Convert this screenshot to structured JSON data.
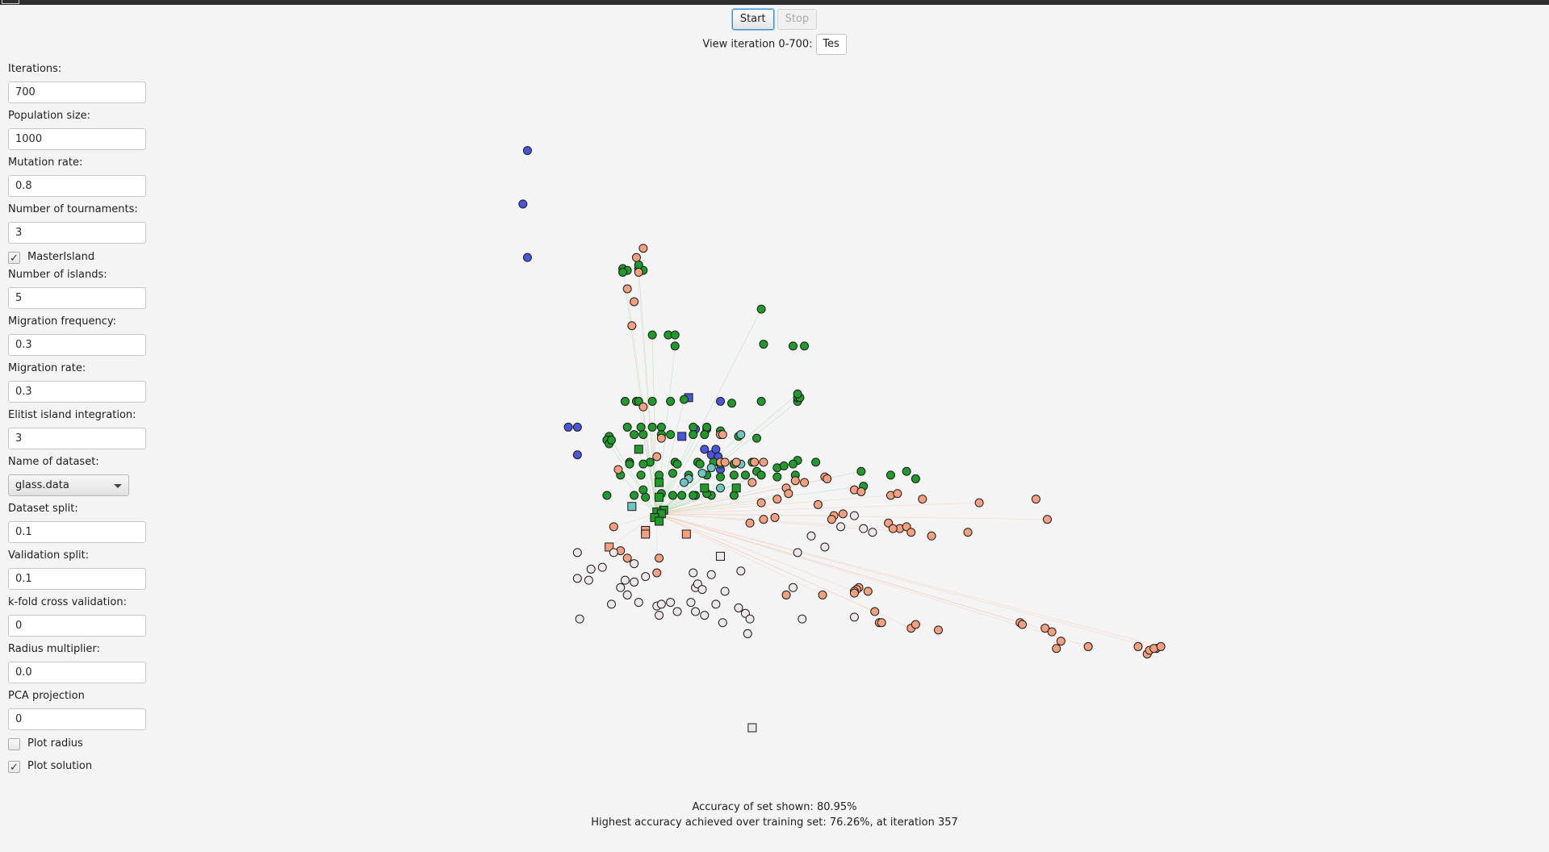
{
  "toolbar": {
    "start_label": "Start",
    "stop_label": "Stop"
  },
  "iteration": {
    "label": "View iteration 0-700:",
    "value": "Tes"
  },
  "settings": {
    "iterations_label": "Iterations:",
    "iterations_value": "700",
    "population_label": "Population size:",
    "population_value": "1000",
    "mutation_label": "Mutation rate:",
    "mutation_value": "0.8",
    "tournaments_label": "Number of tournaments:",
    "tournaments_value": "3",
    "master_island_label": "MasterIsland",
    "master_island_checked": true,
    "islands_label": "Number of islands:",
    "islands_value": "5",
    "migration_freq_label": "Migration frequency:",
    "migration_freq_value": "0.3",
    "migration_rate_label": "Migration rate:",
    "migration_rate_value": "0.3",
    "elitist_label": "Elitist island integration:",
    "elitist_value": "3",
    "dataset_label": "Name of dataset:",
    "dataset_value": "glass.data",
    "split_label": "Dataset split:",
    "split_value": "0.1",
    "validation_label": "Validation split:",
    "validation_value": "0.1",
    "kfold_label": "k-fold cross validation:",
    "kfold_value": "0",
    "radius_label": "Radius multiplier:",
    "radius_value": "0.0",
    "pca_label": "PCA projection",
    "pca_value": "0",
    "plot_radius_label": "Plot radius",
    "plot_radius_checked": false,
    "plot_solution_label": "Plot solution",
    "plot_solution_checked": true
  },
  "status": {
    "accuracy_text": "Accuracy of set shown: 80.95%",
    "highest_text": "Highest accuracy achieved over training set: 76.26%, at iteration 357"
  },
  "colors": {
    "blue": "#4a55dd",
    "green": "#1f9a2b",
    "salmon": "#f4a07f",
    "light": "#efe6ea",
    "teal": "#6fc6c0",
    "green_line": "#7fcf8a",
    "salmon_line": "#f2b8a0"
  },
  "chart_data": {
    "type": "scatter",
    "title": "",
    "xlabel": "",
    "ylabel": "",
    "grid": false,
    "legend": "none",
    "series": [
      {
        "color": "blue",
        "marker": "circle",
        "x": [
          -6.1,
          -6.3,
          -6.1,
          -4.3,
          -3.9,
          -3.9,
          2.4,
          1.3,
          1.8,
          1.7,
          2.0,
          2.2,
          2.3,
          2.4
        ],
        "y": [
          9.4,
          6.5,
          3.6,
          -5.6,
          -5.6,
          -7.1,
          -4.2,
          -5.7,
          -5.7,
          -6.8,
          -7.1,
          -6.8,
          -7.2,
          -7.9
        ]
      },
      {
        "color": "blue",
        "marker": "square",
        "x": [
          1.0,
          0.7
        ],
        "y": [
          -4.0,
          -6.1
        ]
      },
      {
        "color": "green",
        "marker": "circle",
        "x": [
          -1.9,
          -1.7,
          -1.9,
          -1.2,
          -1.0,
          -1.2,
          -0.6,
          0.1,
          0.4,
          0.4,
          -1.8,
          -1.3,
          -1.2,
          -0.6,
          0.2,
          0.8,
          -1.7,
          -1.1,
          -0.6,
          -0.2,
          1.2,
          1.8,
          2.9,
          4.2,
          5.8,
          5.8,
          5.9,
          5.8,
          6.1,
          4.3,
          4.2,
          5.6,
          -1.4,
          -1.0,
          -0.2,
          0.2,
          1.2,
          1.7,
          2.4,
          3.2,
          4.0,
          6.6,
          -2.5,
          -1.6,
          -0.7,
          0.4,
          1.4,
          2.1,
          4.9,
          5.2,
          5.8,
          8.6,
          10.6,
          9.9,
          -2.0,
          -1.6,
          -1.0,
          0.5,
          1.5,
          2.4,
          3.0,
          3.8,
          4.0,
          4.2,
          5.6,
          -2.6,
          -2.5,
          -2.4,
          -1.1,
          -0.3,
          0.3,
          1.0,
          1.8,
          2.4,
          3.0,
          3.5,
          4.9,
          5.7,
          8.7,
          11.0,
          -1.0,
          -0.2,
          0.7,
          1.3,
          2.0,
          3.0,
          -2.6,
          -1.4,
          -0.9,
          0.3,
          1.2,
          1.8
        ],
        "y": [
          3.0,
          2.9,
          2.8,
          3.0,
          2.9,
          3.2,
          -0.6,
          -0.6,
          -0.6,
          -1.2,
          -4.2,
          -4.2,
          -4.2,
          -4.2,
          -4.2,
          -4.1,
          -5.6,
          -5.6,
          -5.6,
          -5.6,
          -5.6,
          -5.6,
          -4.3,
          -4.2,
          -4.2,
          -4.0,
          -4.0,
          -3.8,
          -1.2,
          -1.1,
          0.8,
          -1.2,
          -6.0,
          -6.0,
          -6.0,
          -6.0,
          -6.0,
          -6.0,
          -5.8,
          -6.1,
          -6.2,
          -7.5,
          -6.1,
          -7.5,
          -7.5,
          -7.5,
          -7.5,
          -7.5,
          -7.8,
          -7.7,
          -7.4,
          -8.0,
          -8.0,
          -8.2,
          -8.2,
          -7.6,
          -7.6,
          -7.6,
          -7.6,
          -7.6,
          -7.6,
          -7.5,
          -8.0,
          -8.2,
          -7.6,
          -6.3,
          -6.5,
          -6.3,
          -8.2,
          -8.2,
          -8.1,
          -8.2,
          -8.2,
          -8.3,
          -8.2,
          -8.2,
          -8.3,
          -8.2,
          -8.8,
          -8.4,
          -9.0,
          -9.2,
          -9.3,
          -9.3,
          -9.3,
          -9.3,
          -9.3,
          -9.3,
          -9.4,
          -9.3,
          -9.3,
          -9.2
        ]
      },
      {
        "color": "green",
        "marker": "square",
        "x": [
          -1.2,
          -0.3,
          -0.3,
          -0.1,
          -0.4,
          -0.2,
          -0.5,
          -0.3,
          3.1,
          1.7
        ],
        "y": [
          -6.8,
          -8.6,
          -9.4,
          -10.1,
          -10.2,
          -10.3,
          -10.5,
          -10.7,
          -8.9,
          -8.9
        ]
      },
      {
        "color": "teal",
        "marker": "circle",
        "x": [
          2.0,
          1.6,
          1.0,
          0.8,
          2.4,
          3.3,
          3.3
        ],
        "y": [
          -7.8,
          -8.1,
          -8.4,
          -8.6,
          -8.9,
          -7.6,
          -6.0
        ]
      },
      {
        "color": "teal",
        "marker": "square",
        "x": [
          -1.5
        ],
        "y": [
          -9.9
        ]
      },
      {
        "color": "salmon",
        "marker": "circle",
        "x": [
          -1.3,
          -1.0,
          -1.2,
          -1.7,
          -1.4,
          -1.5,
          -1.0,
          -0.2,
          2.4,
          2.5,
          2.4,
          2.6,
          3.1,
          3.9,
          4.3,
          5.7,
          6.1,
          7.0,
          7.1,
          8.3,
          8.6,
          9.9,
          10.2,
          11.3,
          13.8,
          16.3,
          3.7,
          3.8,
          4.8,
          4.3,
          4.2,
          4.9,
          5.3,
          5.4,
          6.7,
          7.8,
          7.4,
          7.3,
          9.8,
          10.3,
          10.6,
          10.0,
          10.8,
          11.7,
          13.3,
          16.8,
          -0.4,
          -2.1,
          -2.3,
          -2.0,
          -1.7,
          -0.4,
          -0.3,
          5.3,
          6.9,
          8.5,
          8.4,
          8.3,
          8.9,
          8.3,
          9.2,
          9.4,
          9.5,
          10.8,
          11.0,
          12.0,
          15.6,
          15.7,
          16.7,
          17.0,
          17.4,
          17.2,
          18.6,
          20.8,
          21.2,
          21.6,
          21.3,
          21.5,
          21.8
        ],
        "y": [
          3.6,
          4.1,
          2.8,
          1.9,
          1.2,
          -0.1,
          -4.5,
          -6.2,
          -6.0,
          -6.0,
          -7.5,
          -7.5,
          -7.5,
          -7.5,
          -7.5,
          -8.5,
          -8.6,
          -8.3,
          -8.4,
          -9.0,
          -9.1,
          -9.3,
          -9.2,
          -9.5,
          -9.7,
          -9.5,
          -10.8,
          -8.6,
          -10.5,
          -10.6,
          -9.7,
          -9.5,
          -8.9,
          -9.2,
          -9.8,
          -10.3,
          -10.4,
          -10.6,
          -10.8,
          -11.1,
          -11.0,
          -11.1,
          -11.3,
          -11.5,
          -11.3,
          -10.6,
          -7.2,
          -7.9,
          -11.0,
          -12.3,
          -12.7,
          -13.5,
          -12.7,
          -14.7,
          -14.7,
          -14.3,
          -14.4,
          -14.5,
          -14.5,
          -14.6,
          -15.6,
          -16.2,
          -16.2,
          -16.5,
          -16.3,
          -16.6,
          -16.2,
          -16.3,
          -16.5,
          -16.7,
          -17.2,
          -17.6,
          -17.5,
          -17.5,
          -17.9,
          -17.6,
          -17.7,
          -17.6,
          -17.5
        ],
        "note_unused": ""
      },
      {
        "color": "salmon",
        "marker": "square",
        "x": [
          -0.9,
          -0.9,
          0.9,
          -2.5
        ],
        "y": [
          -11.2,
          -11.4,
          -11.4,
          -12.1
        ]
      },
      {
        "color": "light",
        "marker": "circle",
        "x": [
          -3.9,
          -3.9,
          -3.3,
          -2.8,
          -3.4,
          -1.8,
          -2.3,
          -1.4,
          -0.9,
          -1.4,
          1.3,
          1.4,
          1.2,
          2.0,
          2.6,
          3.3,
          5.8,
          6.4,
          7.0,
          7.7,
          8.3,
          8.7,
          9.1,
          -3.8,
          -2.0,
          -1.7,
          -1.2,
          -0.4,
          -0.3,
          0.2,
          0.5,
          1.1,
          1.3,
          1.6,
          2.2,
          3.2,
          3.5,
          3.7,
          5.6,
          -2.4,
          -0.2,
          1.7,
          2.5,
          3.6,
          6.0,
          8.3
        ],
        "y": [
          -12.4,
          -13.8,
          -13.3,
          -13.2,
          -13.9,
          -13.9,
          -12.4,
          -13.0,
          -13.7,
          -14.0,
          -14.3,
          -14.1,
          -13.5,
          -13.6,
          -14.5,
          -13.4,
          -12.4,
          -11.5,
          -12.1,
          -11.0,
          -10.4,
          -11.1,
          -11.3,
          -16.0,
          -14.3,
          -14.7,
          -15.1,
          -15.3,
          -15.8,
          -15.1,
          -15.6,
          -15.1,
          -15.6,
          -14.4,
          -15.2,
          -15.4,
          -15.7,
          -16.0,
          -14.3,
          -15.2,
          -15.2,
          -15.8,
          -16.2,
          -16.8,
          -16.0,
          -15.9
        ]
      },
      {
        "color": "light",
        "marker": "square",
        "x": [
          2.4,
          3.8
        ],
        "y": [
          -12.6,
          -21.9
        ]
      }
    ]
  }
}
